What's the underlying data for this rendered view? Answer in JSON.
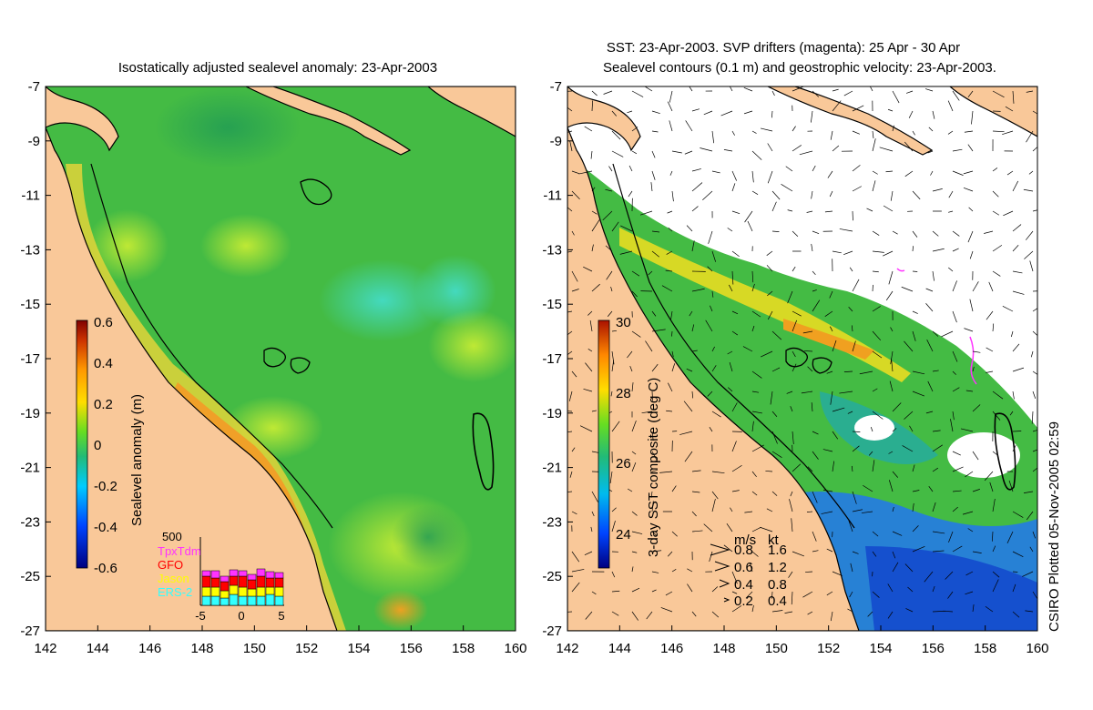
{
  "left_panel": {
    "title": "Isostatically adjusted sealevel anomaly: 23-Apr-2003",
    "colorbar": {
      "label": "Sealevel anomaly (m)",
      "ticks": [
        "0.6",
        "0.4",
        "0.2",
        "0",
        "-0.2",
        "-0.4",
        "-0.6"
      ],
      "range": [
        -0.6,
        0.6
      ]
    },
    "inset": {
      "ymax_label": "500",
      "legend": [
        {
          "name": "TpxTdm",
          "color": "#ff33ff"
        },
        {
          "name": "GFO",
          "color": "#ff0000"
        },
        {
          "name": "Jason",
          "color": "#ffff00"
        },
        {
          "name": "ERS-2",
          "color": "#33ffff"
        }
      ],
      "x_ticks": [
        "-5",
        "0",
        "5"
      ]
    }
  },
  "right_panel": {
    "title_line1": "SST: 23-Apr-2003. SVP drifters (magenta): 25 Apr - 30 Apr",
    "title_line2": "Sealevel contours (0.1 m) and geostrophic velocity: 23-Apr-2003.",
    "colorbar": {
      "label": "3-day SST composite (deg C)",
      "ticks": [
        "30",
        "28",
        "26",
        "24"
      ],
      "range": [
        23,
        30
      ]
    },
    "velocity_legend": {
      "headers": [
        "m/s",
        "kt"
      ],
      "rows": [
        [
          "0.8",
          "1.6"
        ],
        [
          "0.6",
          "1.2"
        ],
        [
          "0.4",
          "0.8"
        ],
        [
          "0.2",
          "0.4"
        ]
      ]
    },
    "credit": "CSIRO Plotted 05-Nov-2005 02:59"
  },
  "axes": {
    "lon_ticks": [
      "142",
      "144",
      "146",
      "148",
      "150",
      "152",
      "154",
      "156",
      "158",
      "160"
    ],
    "lat_ticks": [
      "-7",
      "-9",
      "-11",
      "-13",
      "-15",
      "-17",
      "-19",
      "-21",
      "-23",
      "-25",
      "-27"
    ],
    "lon_range": [
      142,
      160
    ],
    "lat_range": [
      -27,
      -7
    ]
  },
  "colors": {
    "land": "#f9c899",
    "coast": "#000000",
    "ocean_mid": "#44bb44"
  }
}
